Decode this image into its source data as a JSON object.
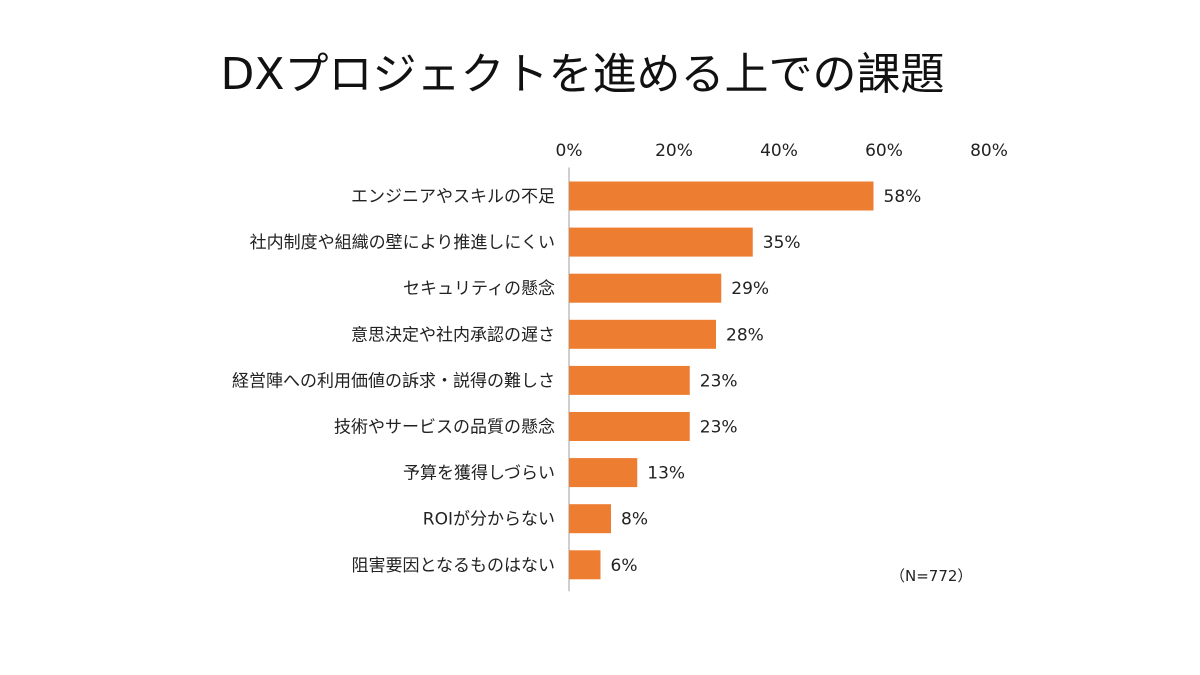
{
  "title": "DXプロジェクトを進める上での課題",
  "note": "（N=772）",
  "colors": {
    "bar": "#ED7D31",
    "axis": "#BFBFBF"
  },
  "chart_data": {
    "type": "bar",
    "orientation": "horizontal",
    "title": "DXプロジェクトを進める上での課題",
    "categories": [
      "エンジニアやスキルの不足",
      "社内制度や組織の壁により推進しにくい",
      "セキュリティの懸念",
      "意思決定や社内承認の遅さ",
      "経営陣への利用価値の訴求・説得の難しさ",
      "技術やサービスの品質の懸念",
      "予算を獲得しづらい",
      "ROIが分からない",
      "阻害要因となるものはない"
    ],
    "values": [
      58,
      35,
      29,
      28,
      23,
      23,
      13,
      8,
      6
    ],
    "value_labels": [
      "58%",
      "35%",
      "29%",
      "28%",
      "23%",
      "23%",
      "13%",
      "8%",
      "6%"
    ],
    "xlim": [
      0,
      80
    ],
    "xticks": [
      "0%",
      "20%",
      "40%",
      "60%",
      "80%"
    ],
    "xtick_values": [
      0,
      20,
      40,
      60,
      80
    ],
    "axis_position": "top",
    "grid": false,
    "legend": "none"
  }
}
